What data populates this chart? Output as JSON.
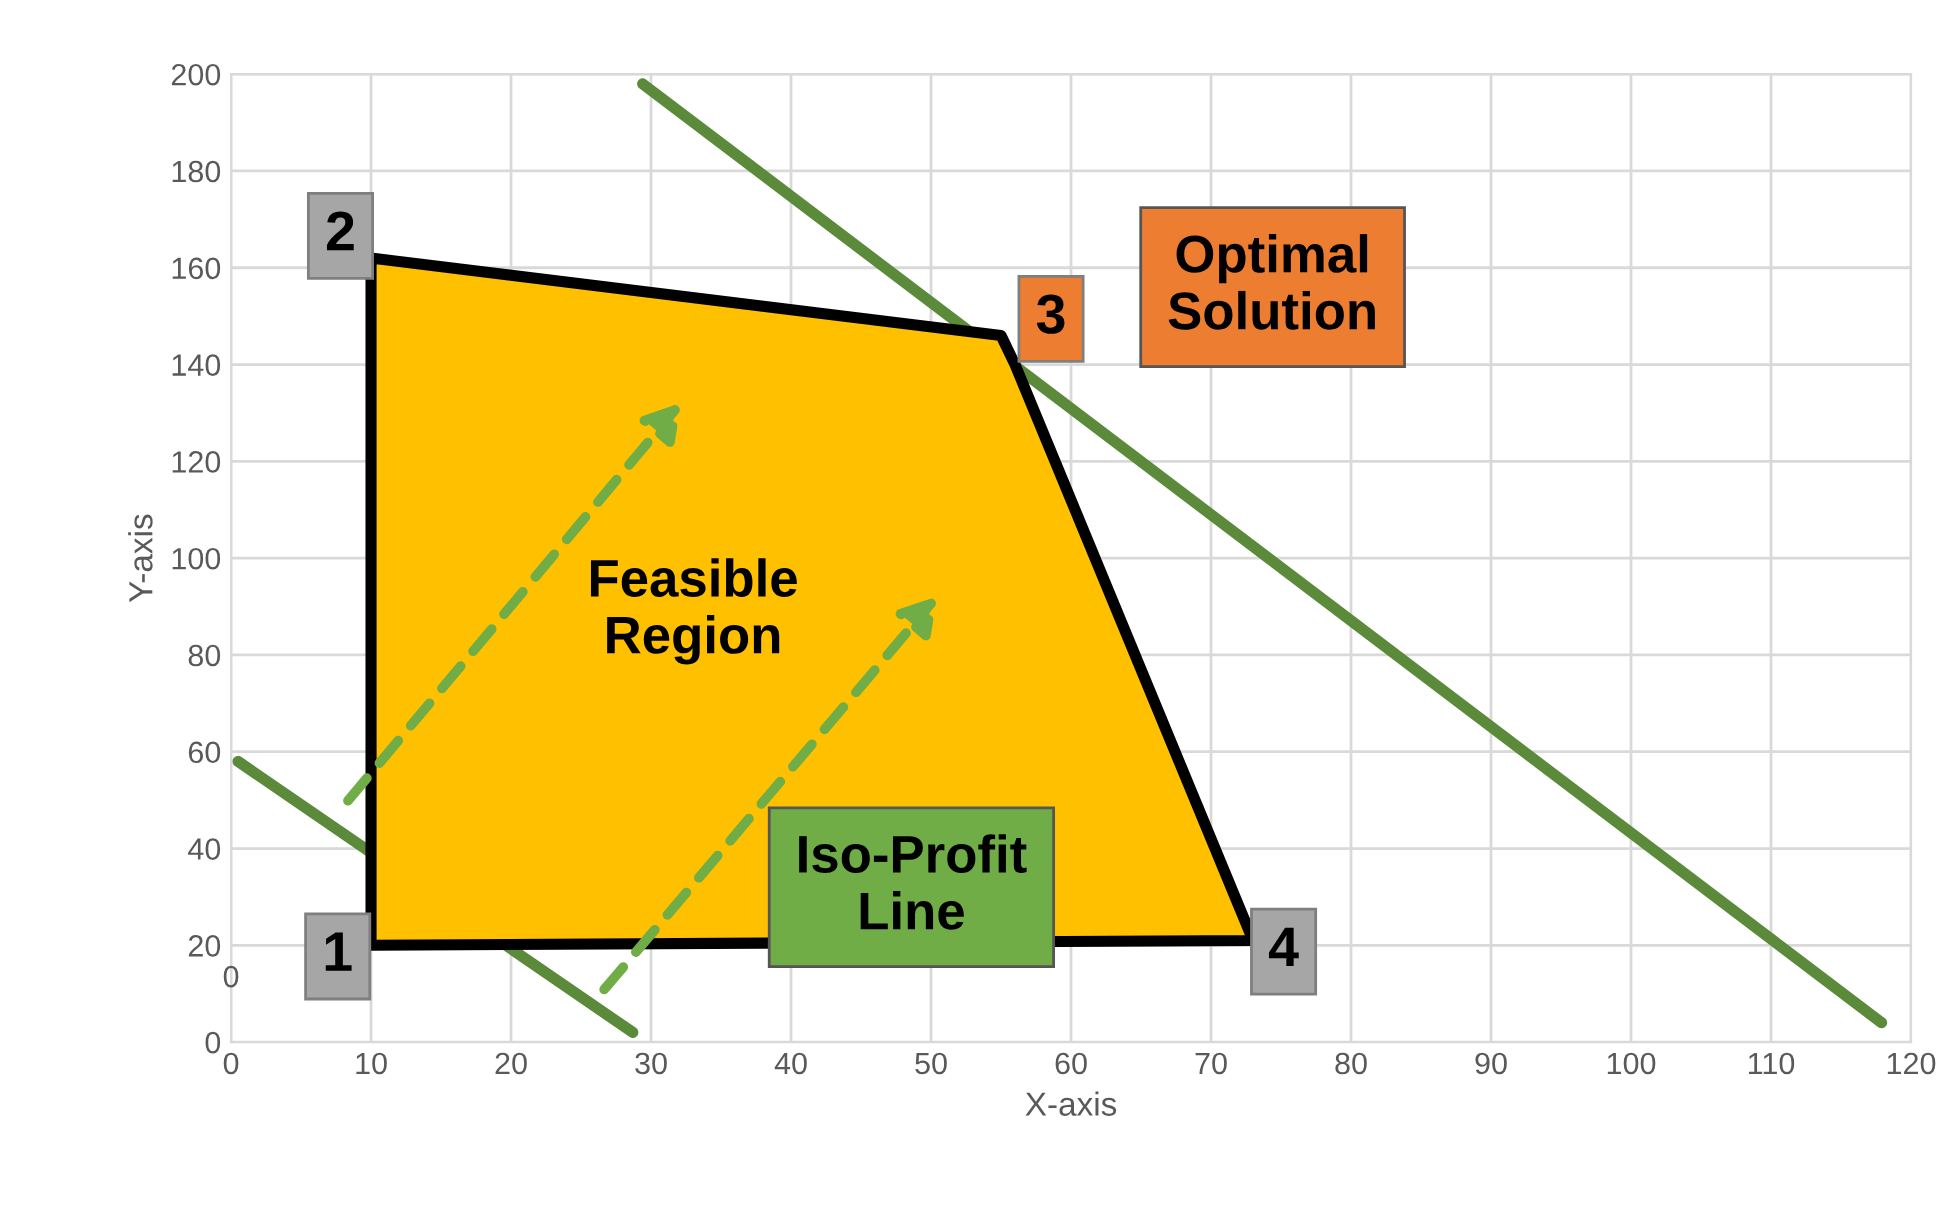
{
  "chart_data": {
    "type": "line",
    "xlabel": "X-axis",
    "ylabel": "Y-axis",
    "xlim": [
      0,
      120
    ],
    "ylim": [
      0,
      200
    ],
    "xticks": [
      0,
      10,
      20,
      30,
      40,
      50,
      60,
      70,
      80,
      90,
      100,
      110,
      120
    ],
    "yticks": [
      0,
      20,
      40,
      60,
      80,
      100,
      120,
      140,
      160,
      180,
      200
    ],
    "grid": true,
    "series": [
      {
        "type": "area",
        "color": "#ffc000",
        "x": [
          10,
          10,
          55,
          56,
          73,
          10
        ],
        "values": [
          20,
          162,
          146,
          140,
          21,
          20
        ]
      },
      {
        "color": "#5a8a3a",
        "x": [
          0.5,
          28.7
        ],
        "values": [
          58,
          2
        ]
      },
      {
        "color": "#5a8a3a",
        "x": [
          29.4,
          117.9
        ],
        "values": [
          198,
          4
        ]
      }
    ],
    "annotations": [
      {
        "text": "1",
        "x": 10,
        "y": 20
      },
      {
        "text": "2",
        "x": 10,
        "y": 162
      },
      {
        "text": "3",
        "x": 55,
        "y": 146
      },
      {
        "text": "4",
        "x": 73,
        "y": 21
      },
      "Optimal\nSolution",
      "Feasible\nRegion",
      "Iso-Profit\nLine",
      "0"
    ]
  }
}
